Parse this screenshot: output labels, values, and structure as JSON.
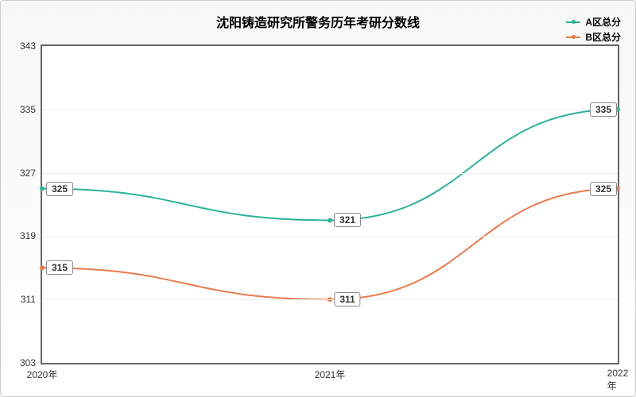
{
  "chart": {
    "title": "沈阳铸造研究所警务历年考研分数线",
    "title_fontsize": 16,
    "background_gradient": [
      "#f7f7f7",
      "#ffffff"
    ],
    "border_color": "#666666",
    "grid_color": "#eeeeee",
    "x": {
      "categories": [
        "2020年",
        "2021年",
        "2022年"
      ],
      "positions": [
        0,
        0.5,
        1
      ]
    },
    "y": {
      "min": 303,
      "max": 343,
      "ticks": [
        303,
        311,
        319,
        327,
        335,
        343
      ]
    },
    "series": [
      {
        "name": "A区总分",
        "color": "#2bb39a",
        "values": [
          325,
          321,
          335
        ],
        "line_width": 2
      },
      {
        "name": "B区总分",
        "color": "#e87b4c",
        "values": [
          315,
          311,
          325
        ],
        "line_width": 2
      }
    ]
  }
}
